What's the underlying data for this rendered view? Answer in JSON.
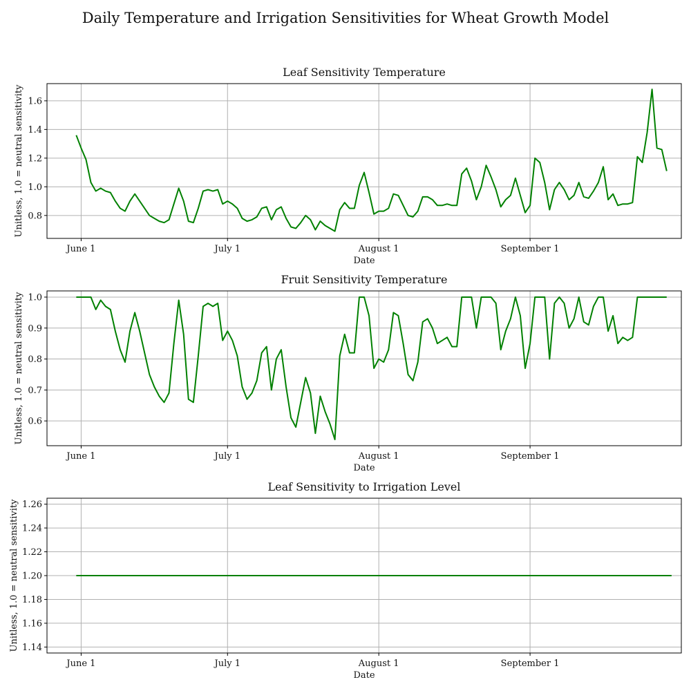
{
  "figure": {
    "title": "Daily Temperature and Irrigation Sensitivities for Wheat Growth Model"
  },
  "style": {
    "line_color": "#008000",
    "grid_color": "#b0b0b0",
    "axes_color": "#000000"
  },
  "chart_data": [
    {
      "type": "line",
      "title": "Leaf Sensitivity Temperature",
      "xlabel": "Date",
      "ylabel": "Unitless, 1.0 = neutral sensitivity",
      "grid": true,
      "x_range": [
        "2023-05-25",
        "2023-10-02"
      ],
      "x_ticks": [
        {
          "label": "June 1",
          "date": "2023-06-01"
        },
        {
          "label": "July 1",
          "date": "2023-07-01"
        },
        {
          "label": "August 1",
          "date": "2023-08-01"
        },
        {
          "label": "September 1",
          "date": "2023-09-01"
        }
      ],
      "ylim": [
        0.64,
        1.72
      ],
      "y_ticks": [
        "0.8",
        "1.0",
        "1.2",
        "1.4",
        "1.6"
      ],
      "series": [
        {
          "start_date": "2023-05-31",
          "values": [
            1.36,
            1.27,
            1.19,
            1.03,
            0.97,
            0.99,
            0.97,
            0.96,
            0.9,
            0.85,
            0.83,
            0.9,
            0.95,
            0.9,
            0.85,
            0.8,
            0.78,
            0.76,
            0.75,
            0.77,
            0.88,
            0.99,
            0.9,
            0.76,
            0.75,
            0.85,
            0.97,
            0.98,
            0.97,
            0.98,
            0.88,
            0.9,
            0.88,
            0.85,
            0.78,
            0.76,
            0.77,
            0.79,
            0.85,
            0.86,
            0.77,
            0.84,
            0.86,
            0.78,
            0.72,
            0.71,
            0.75,
            0.8,
            0.77,
            0.7,
            0.76,
            0.73,
            0.71,
            0.69,
            0.84,
            0.89,
            0.85,
            0.85,
            1.01,
            1.1,
            0.96,
            0.81,
            0.83,
            0.83,
            0.85,
            0.95,
            0.94,
            0.87,
            0.8,
            0.79,
            0.83,
            0.93,
            0.93,
            0.91,
            0.87,
            0.87,
            0.88,
            0.87,
            0.87,
            1.09,
            1.13,
            1.04,
            0.91,
            1.0,
            1.15,
            1.07,
            0.98,
            0.86,
            0.91,
            0.94,
            1.06,
            0.94,
            0.82,
            0.87,
            1.2,
            1.17,
            1.03,
            0.84,
            0.98,
            1.03,
            0.98,
            0.91,
            0.94,
            1.03,
            0.93,
            0.92,
            0.97,
            1.03,
            1.14,
            0.91,
            0.95,
            0.87,
            0.88,
            0.88,
            0.89,
            1.21,
            1.17,
            1.38,
            1.68,
            1.27,
            1.26,
            1.11
          ]
        }
      ]
    },
    {
      "type": "line",
      "title": "Fruit Sensitivity Temperature",
      "xlabel": "Date",
      "ylabel": "Unitless, 1.0 = neutral sensitivity",
      "grid": true,
      "x_range": [
        "2023-05-25",
        "2023-10-02"
      ],
      "x_ticks": [
        {
          "label": "June 1",
          "date": "2023-06-01"
        },
        {
          "label": "July 1",
          "date": "2023-07-01"
        },
        {
          "label": "August 1",
          "date": "2023-08-01"
        },
        {
          "label": "September 1",
          "date": "2023-09-01"
        }
      ],
      "ylim": [
        0.52,
        1.02
      ],
      "y_ticks": [
        "0.6",
        "0.7",
        "0.8",
        "0.9",
        "1.0"
      ],
      "series": [
        {
          "start_date": "2023-05-31",
          "values": [
            1.0,
            1.0,
            1.0,
            1.0,
            0.96,
            0.99,
            0.97,
            0.96,
            0.89,
            0.83,
            0.79,
            0.89,
            0.95,
            0.89,
            0.82,
            0.75,
            0.71,
            0.68,
            0.66,
            0.69,
            0.85,
            0.99,
            0.88,
            0.67,
            0.66,
            0.81,
            0.97,
            0.98,
            0.97,
            0.98,
            0.86,
            0.89,
            0.86,
            0.81,
            0.71,
            0.67,
            0.69,
            0.73,
            0.82,
            0.84,
            0.7,
            0.8,
            0.83,
            0.71,
            0.61,
            0.58,
            0.66,
            0.74,
            0.69,
            0.56,
            0.68,
            0.63,
            0.59,
            0.54,
            0.81,
            0.88,
            0.82,
            0.82,
            1.0,
            1.0,
            0.94,
            0.77,
            0.8,
            0.79,
            0.83,
            0.95,
            0.94,
            0.85,
            0.75,
            0.73,
            0.79,
            0.92,
            0.93,
            0.9,
            0.85,
            0.86,
            0.87,
            0.84,
            0.84,
            1.0,
            1.0,
            1.0,
            0.9,
            1.0,
            1.0,
            1.0,
            0.98,
            0.83,
            0.89,
            0.93,
            1.0,
            0.94,
            0.77,
            0.85,
            1.0,
            1.0,
            1.0,
            0.8,
            0.98,
            1.0,
            0.98,
            0.9,
            0.93,
            1.0,
            0.92,
            0.91,
            0.97,
            1.0,
            1.0,
            0.89,
            0.94,
            0.85,
            0.87,
            0.86,
            0.87,
            1.0,
            1.0,
            1.0,
            1.0,
            1.0,
            1.0,
            1.0
          ]
        }
      ]
    },
    {
      "type": "line",
      "title": "Leaf Sensitivity to Irrigation Level",
      "xlabel": "Date",
      "ylabel": "Unitless, 1.0 = neutral sensitivity",
      "grid": true,
      "x_range": [
        "2023-05-25",
        "2023-10-02"
      ],
      "x_ticks": [
        {
          "label": "June 1",
          "date": "2023-06-01"
        },
        {
          "label": "July 1",
          "date": "2023-07-01"
        },
        {
          "label": "August 1",
          "date": "2023-08-01"
        },
        {
          "label": "September 1",
          "date": "2023-09-01"
        }
      ],
      "ylim": [
        1.135,
        1.265
      ],
      "y_ticks": [
        "1.14",
        "1.16",
        "1.18",
        "1.20",
        "1.22",
        "1.24",
        "1.26"
      ],
      "series": [
        {
          "start_date": "2023-05-31",
          "end_date": "2023-09-30",
          "constant_value": 1.2
        }
      ]
    }
  ]
}
